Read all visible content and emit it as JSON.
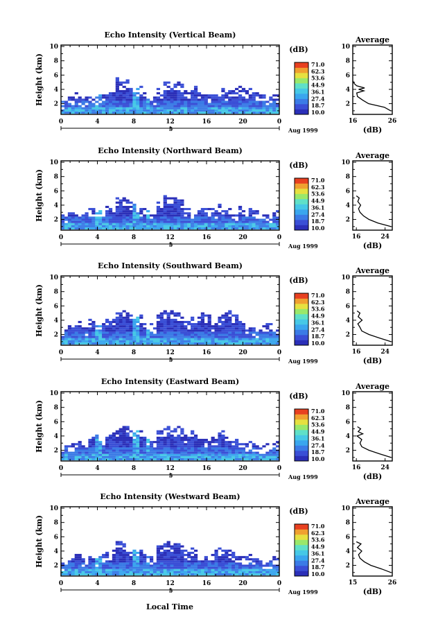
{
  "figure": {
    "xlabel": "Local Time",
    "date_label": "Aug 1999",
    "day_marker": "5",
    "colorbar_unit": "(dB)",
    "colorbar_levels": [
      "71.0",
      "62.3",
      "53.6",
      "44.9",
      "36.1",
      "27.4",
      "18.7",
      "10.0"
    ],
    "average_title": "Average",
    "average_xlabel": "(dB)",
    "colors": {
      "scale": [
        "#2b2fb8",
        "#3a4fd6",
        "#3b7be6",
        "#3aa6ee",
        "#46c8e6",
        "#5fe0c8",
        "#9ae86a",
        "#e6e040",
        "#f0a030",
        "#e84020"
      ]
    }
  },
  "chart_data": [
    {
      "type": "heatmap",
      "title": "Echo Intensity (Vertical Beam)",
      "ylabel": "Height (km)",
      "x_ticks": [
        "0",
        "4",
        "8",
        "12",
        "16",
        "20",
        "0"
      ],
      "y_ticks": [
        "2",
        "4",
        "6",
        "8",
        "10"
      ],
      "xlim": [
        0,
        24
      ],
      "ylim": [
        0.5,
        10.2
      ],
      "echo_top_km": [
        2.4,
        2.9,
        3.2,
        2.7,
        3.0,
        3.1,
        3.3,
        3.6,
        5.2,
        5.0,
        4.1,
        4.4,
        3.3,
        3.0,
        3.9,
        5.1,
        5.2,
        4.8,
        3.8,
        4.3,
        3.6,
        3.4,
        3.3,
        3.9,
        3.8,
        4.0,
        4.2,
        3.7,
        3.5,
        3.0,
        2.9,
        3.1
      ],
      "average_profile": {
        "xlim": [
          16,
          26
        ],
        "x_ticks": [
          "16",
          "26"
        ],
        "y_ticks": [
          "2",
          "4",
          "6",
          "8",
          "10"
        ],
        "height_km": [
          1.0,
          1.5,
          2.0,
          2.5,
          3.0,
          3.5,
          3.8,
          4.0,
          4.2,
          4.5,
          4.8,
          5.0,
          5.2
        ],
        "db": [
          25.6,
          24.0,
          20.0,
          18.5,
          17.2,
          17.0,
          18.8,
          17.5,
          19.0,
          17.0,
          16.4,
          16.2,
          16.0
        ]
      }
    },
    {
      "type": "heatmap",
      "title": "Echo Intensity (Northward Beam)",
      "ylabel": "Height (km)",
      "x_ticks": [
        "0",
        "4",
        "8",
        "12",
        "16",
        "20",
        "0"
      ],
      "y_ticks": [
        "2",
        "4",
        "6",
        "8",
        "10"
      ],
      "xlim": [
        0,
        24
      ],
      "ylim": [
        0.5,
        10.2
      ],
      "echo_top_km": [
        2.6,
        3.2,
        3.0,
        2.8,
        3.4,
        3.0,
        3.5,
        4.0,
        5.2,
        5.1,
        4.3,
        3.6,
        3.2,
        3.0,
        4.5,
        5.2,
        5.1,
        4.6,
        3.4,
        3.0,
        3.6,
        3.3,
        3.1,
        3.8,
        3.5,
        2.9,
        3.8,
        3.2,
        3.0,
        2.8,
        2.7,
        2.9
      ],
      "average_profile": {
        "xlim": [
          15,
          26
        ],
        "x_ticks": [
          "16",
          "24"
        ],
        "y_ticks": [
          "2",
          "4",
          "6",
          "8",
          "10"
        ],
        "height_km": [
          1.0,
          1.5,
          2.0,
          2.5,
          3.0,
          3.5,
          4.0,
          4.5,
          5.0,
          5.3
        ],
        "db": [
          25.6,
          22.0,
          19.5,
          18.0,
          17.0,
          16.6,
          17.2,
          16.4,
          16.8,
          16.0
        ]
      }
    },
    {
      "type": "heatmap",
      "title": "Echo Intensity (Southward Beam)",
      "ylabel": "Height (km)",
      "x_ticks": [
        "0",
        "4",
        "8",
        "12",
        "16",
        "20",
        "0"
      ],
      "y_ticks": [
        "2",
        "4",
        "6",
        "8",
        "10"
      ],
      "xlim": [
        0,
        24
      ],
      "ylim": [
        0.5,
        10.2
      ],
      "echo_top_km": [
        2.5,
        3.0,
        3.6,
        3.2,
        3.8,
        3.4,
        3.9,
        4.1,
        5.2,
        5.0,
        4.4,
        4.6,
        3.4,
        3.3,
        4.6,
        5.2,
        5.1,
        4.8,
        3.9,
        4.6,
        5.0,
        4.8,
        3.6,
        4.4,
        5.1,
        4.6,
        3.5,
        3.0,
        2.7,
        3.2,
        3.5,
        2.9
      ],
      "average_profile": {
        "xlim": [
          15,
          26
        ],
        "x_ticks": [
          "16",
          "24"
        ],
        "y_ticks": [
          "2",
          "4",
          "6",
          "8",
          "10"
        ],
        "height_km": [
          1.0,
          1.5,
          2.0,
          2.5,
          3.0,
          3.5,
          4.0,
          4.5,
          5.0,
          5.3
        ],
        "db": [
          25.6,
          22.5,
          19.5,
          17.5,
          17.0,
          16.4,
          17.6,
          16.5,
          17.0,
          16.2
        ]
      }
    },
    {
      "type": "heatmap",
      "title": "Echo Intensity (Eastward Beam)",
      "ylabel": "Height (km)",
      "x_ticks": [
        "0",
        "4",
        "8",
        "12",
        "16",
        "20",
        "0"
      ],
      "y_ticks": [
        "2",
        "4",
        "6",
        "8",
        "10"
      ],
      "xlim": [
        0,
        24
      ],
      "ylim": [
        0.5,
        10.2
      ],
      "echo_top_km": [
        2.5,
        3.0,
        3.4,
        3.1,
        3.6,
        3.9,
        3.5,
        4.2,
        5.2,
        5.1,
        4.5,
        4.8,
        3.6,
        3.4,
        4.7,
        5.2,
        5.0,
        5.1,
        4.2,
        4.8,
        3.5,
        3.2,
        3.9,
        4.6,
        4.4,
        3.6,
        3.2,
        3.0,
        2.8,
        2.7,
        2.6,
        3.0
      ],
      "average_profile": {
        "xlim": [
          15,
          26
        ],
        "x_ticks": [
          "16",
          "24"
        ],
        "y_ticks": [
          "2",
          "4",
          "6",
          "8",
          "10"
        ],
        "height_km": [
          1.0,
          1.5,
          2.0,
          2.5,
          3.0,
          3.5,
          4.0,
          4.3,
          4.6,
          5.0,
          5.3
        ],
        "db": [
          25.6,
          22.5,
          19.5,
          17.5,
          17.0,
          17.5,
          16.2,
          17.8,
          16.5,
          17.2,
          16.3
        ]
      }
    },
    {
      "type": "heatmap",
      "title": "Echo Intensity (Westward Beam)",
      "ylabel": "Height (km)",
      "x_ticks": [
        "0",
        "4",
        "8",
        "12",
        "16",
        "20",
        "0"
      ],
      "y_ticks": [
        "2",
        "4",
        "6",
        "8",
        "10"
      ],
      "xlim": [
        0,
        24
      ],
      "ylim": [
        0.5,
        10.2
      ],
      "echo_top_km": [
        2.4,
        2.9,
        3.3,
        3.0,
        3.4,
        3.2,
        3.6,
        4.0,
        5.2,
        5.0,
        4.3,
        4.2,
        3.4,
        3.2,
        4.6,
        5.2,
        5.2,
        5.0,
        3.9,
        4.4,
        3.5,
        3.2,
        3.7,
        4.2,
        4.0,
        3.6,
        3.4,
        3.1,
        2.8,
        2.6,
        2.5,
        3.1
      ],
      "average_profile": {
        "xlim": [
          15,
          26
        ],
        "x_ticks": [
          "15",
          "26"
        ],
        "y_ticks": [
          "2",
          "4",
          "6",
          "8",
          "10"
        ],
        "height_km": [
          1.0,
          1.5,
          2.0,
          2.5,
          3.0,
          3.5,
          4.0,
          4.5,
          5.0,
          5.3
        ],
        "db": [
          25.6,
          23.0,
          20.0,
          18.2,
          17.0,
          16.6,
          17.5,
          16.3,
          17.3,
          16.0
        ]
      }
    }
  ]
}
